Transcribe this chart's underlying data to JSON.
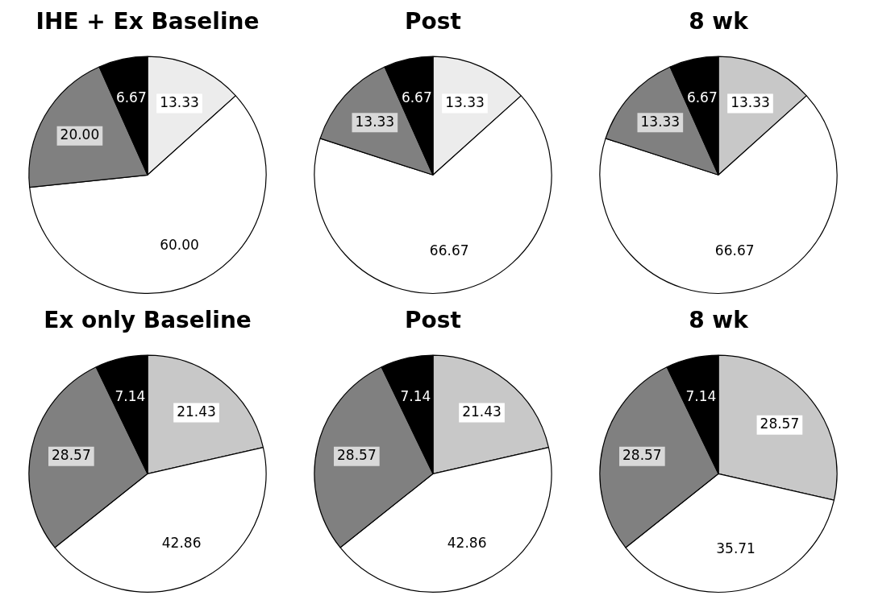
{
  "chart_data": [
    {
      "type": "pie",
      "title": "IHE + Ex Baseline",
      "categories": [
        null,
        null,
        null,
        null
      ],
      "values": [
        13.33,
        60.0,
        20.0,
        6.67
      ],
      "value_labels": [
        "13.33",
        "60.00",
        "20.00",
        "6.67"
      ],
      "colors": [
        "#ececec",
        "#ffffff",
        "#808080",
        "#000000"
      ]
    },
    {
      "type": "pie",
      "title": "Post",
      "categories": [
        null,
        null,
        null,
        null
      ],
      "values": [
        13.33,
        66.67,
        13.33,
        6.67
      ],
      "value_labels": [
        "13.33",
        "66.67",
        "13.33",
        "6.67"
      ],
      "colors": [
        "#ececec",
        "#ffffff",
        "#808080",
        "#000000"
      ]
    },
    {
      "type": "pie",
      "title": "8 wk",
      "categories": [
        null,
        null,
        null,
        null
      ],
      "values": [
        13.33,
        66.67,
        13.33,
        6.67
      ],
      "value_labels": [
        "13.33",
        "66.67",
        "13.33",
        "6.67"
      ],
      "colors": [
        "#c8c8c8",
        "#ffffff",
        "#808080",
        "#000000"
      ]
    },
    {
      "type": "pie",
      "title": "Ex only Baseline",
      "categories": [
        null,
        null,
        null,
        null
      ],
      "values": [
        21.43,
        42.86,
        28.57,
        7.14
      ],
      "value_labels": [
        "21.43",
        "42.86",
        "28.57",
        "7.14"
      ],
      "colors": [
        "#c8c8c8",
        "#ffffff",
        "#808080",
        "#000000"
      ]
    },
    {
      "type": "pie",
      "title": "Post",
      "categories": [
        null,
        null,
        null,
        null
      ],
      "values": [
        21.43,
        42.86,
        28.57,
        7.14
      ],
      "value_labels": [
        "21.43",
        "42.86",
        "28.57",
        "7.14"
      ],
      "colors": [
        "#c8c8c8",
        "#ffffff",
        "#808080",
        "#000000"
      ]
    },
    {
      "type": "pie",
      "title": "8 wk",
      "categories": [
        null,
        null,
        null,
        null
      ],
      "values": [
        28.57,
        35.71,
        28.57,
        7.14
      ],
      "value_labels": [
        "28.57",
        "35.71",
        "28.57",
        "7.14"
      ],
      "colors": [
        "#c8c8c8",
        "#ffffff",
        "#808080",
        "#000000"
      ]
    }
  ]
}
